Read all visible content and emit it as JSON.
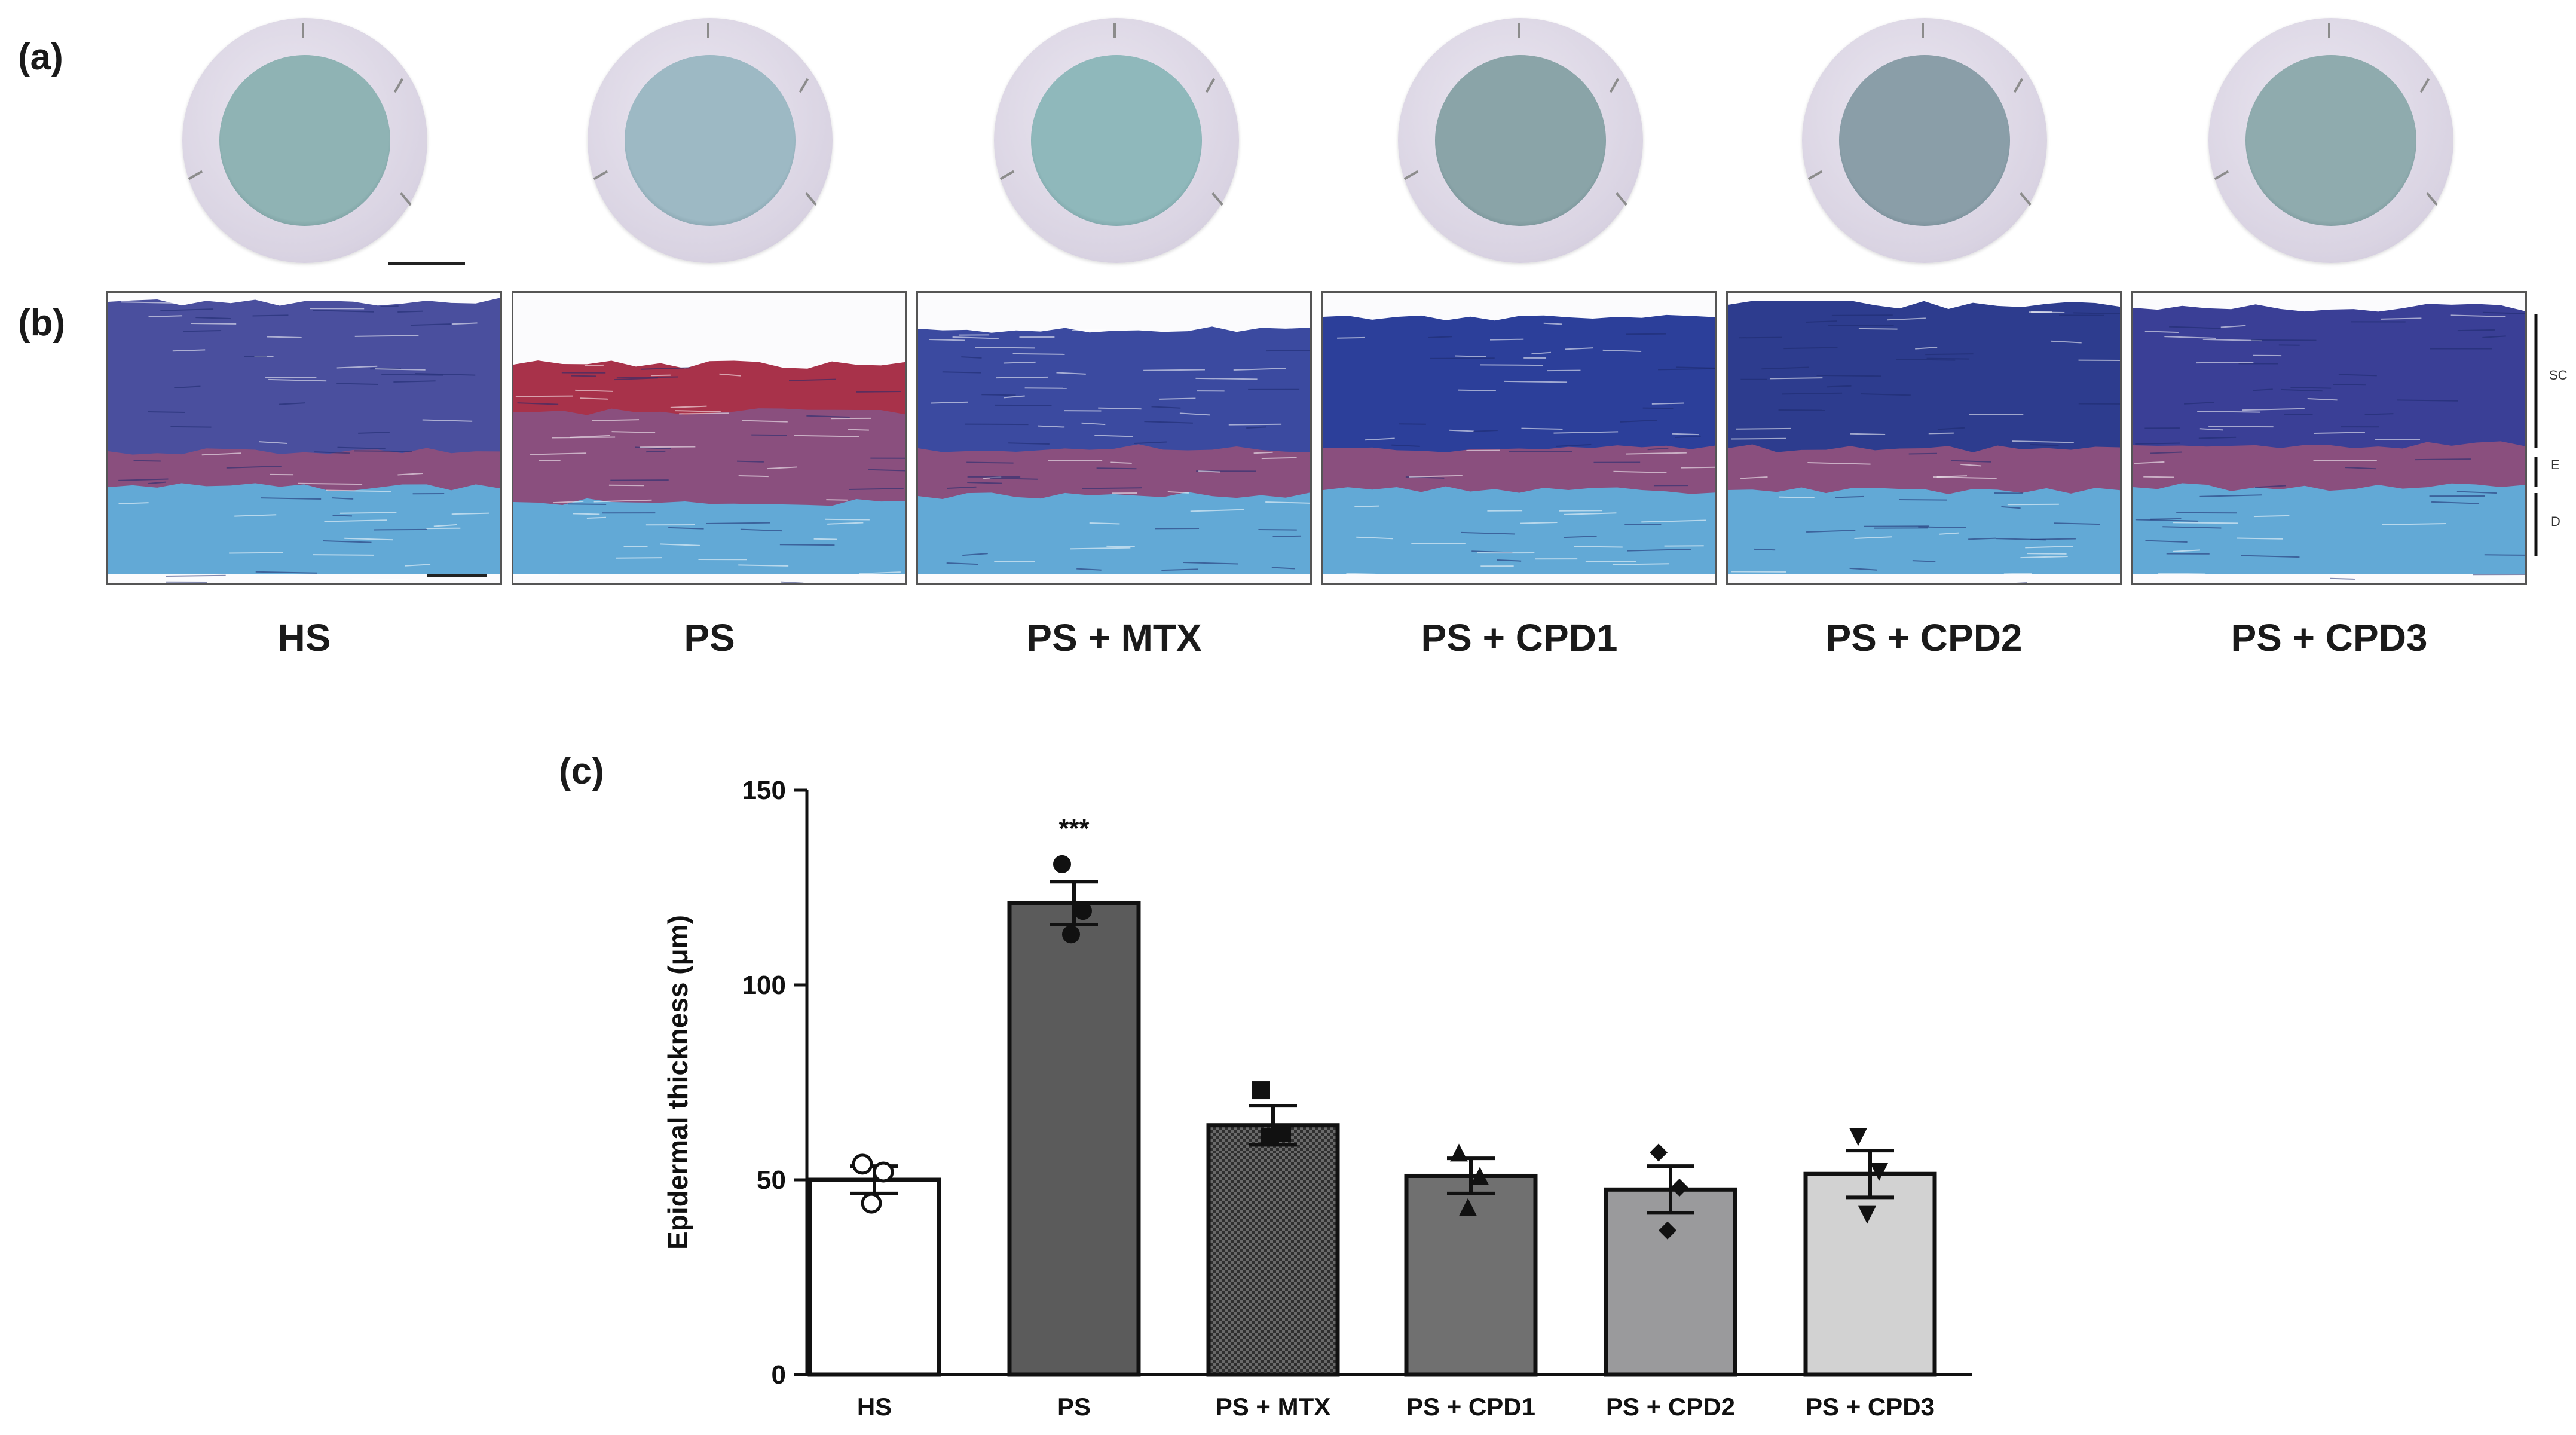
{
  "panels": {
    "a": "(a)",
    "b": "(b)",
    "c": "(c)"
  },
  "groups": [
    "HS",
    "PS",
    "PS + MTX",
    "PS + CPD1",
    "PS + CPD2",
    "PS + CPD3"
  ],
  "layers": {
    "sc": "SC",
    "e": "E",
    "d": "D"
  },
  "membrane_colors": [
    "#8fb3b4",
    "#9db9c4",
    "#8fb8bb",
    "#8aa4a8",
    "#8a9ea8",
    "#8fabae"
  ],
  "chart_data": {
    "type": "bar",
    "categories": [
      "HS",
      "PS",
      "PS + MTX",
      "PS + CPD1",
      "PS + CPD2",
      "PS + CPD3"
    ],
    "values": [
      50,
      121,
      64,
      51,
      47.5,
      51.5
    ],
    "errors": [
      3.5,
      5.5,
      5,
      4.5,
      6,
      6
    ],
    "points": [
      [
        54,
        52,
        44
      ],
      [
        131,
        119,
        113
      ],
      [
        73,
        62,
        61
      ],
      [
        57,
        51,
        43
      ],
      [
        57,
        48,
        37
      ],
      [
        61,
        52,
        41
      ]
    ],
    "markers": [
      "open-circle",
      "filled-circle",
      "filled-square",
      "filled-triangle-up",
      "filled-diamond",
      "filled-triangle-down"
    ],
    "fills": [
      "#ffffff",
      "#5b5b5b",
      "#2f2f2f",
      "#707070",
      "#9a9a9c",
      "#d2d2d2"
    ],
    "patterns": [
      "none",
      "none",
      "checker",
      "none",
      "none",
      "none"
    ],
    "annotation": {
      "category": "PS",
      "text": "***"
    },
    "ylabel": "Epidermal thickness (μm)",
    "xlabel": "",
    "ylim": [
      0,
      150
    ],
    "yticks": [
      0,
      50,
      100,
      150
    ],
    "grid": false
  }
}
